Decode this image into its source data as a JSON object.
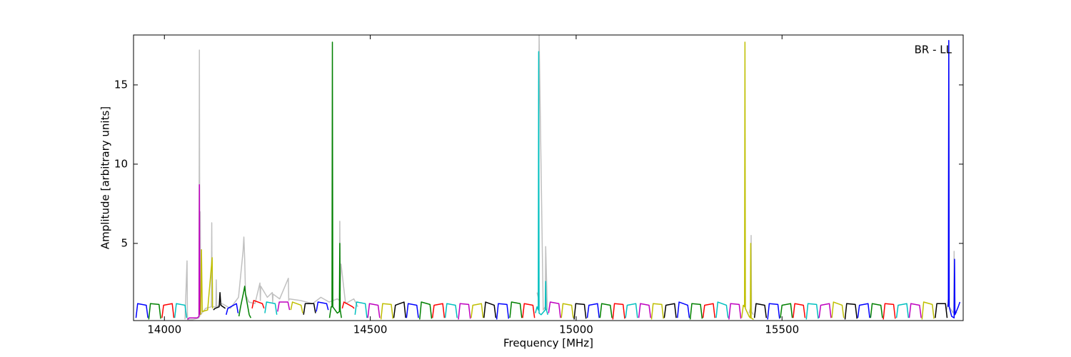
{
  "chart_data": {
    "type": "line",
    "xlabel": "Frequency [MHz]",
    "ylabel": "Amplitude [arbitrary units]",
    "annotation": "BR - LL",
    "xlim": [
      13925,
      15940
    ],
    "ylim": [
      0.13,
      18.15
    ],
    "xticks": [
      14000,
      14500,
      15000,
      15500
    ],
    "yticks": [
      5,
      10,
      15
    ],
    "series": [
      {
        "color": "#c0c0c0",
        "x": [
          14050,
          14055,
          14056,
          14070,
          14084,
          14085,
          14086,
          14087,
          14088,
          14100,
          14114,
          14115,
          14116,
          14125,
          14126,
          14127,
          14140,
          14160,
          14180,
          14191,
          14193,
          14195,
          14197,
          14205,
          14220,
          14232,
          14233,
          14234,
          14250,
          14262,
          14263,
          14264,
          14280,
          14301,
          14302,
          14303,
          14330,
          14360,
          14380,
          14400,
          14420,
          14425,
          14426,
          14427,
          14429,
          14440,
          14460,
          14470,
          14480,
          14905,
          14909,
          14910,
          14920,
          14925,
          14926,
          14930,
          14940,
          15420,
          15424,
          15425,
          15426,
          15430,
          15440,
          15900,
          15904,
          15905,
          15906,
          15916,
          15917,
          15918,
          15919,
          15925
        ],
        "values": [
          0.2,
          3.9,
          0.2,
          0.2,
          0.3,
          17.2,
          0.4,
          7.0,
          0.5,
          0.9,
          1.0,
          6.3,
          1.0,
          1.0,
          2.7,
          1.0,
          1.2,
          0.9,
          1.6,
          4.5,
          5.4,
          4.0,
          1.8,
          1.3,
          1.2,
          2.5,
          1.4,
          2.3,
          1.6,
          1.9,
          1.3,
          1.8,
          1.5,
          2.8,
          1.4,
          1.5,
          1.4,
          1.2,
          1.6,
          1.3,
          1.5,
          1.4,
          6.4,
          2.0,
          3.7,
          1.2,
          1.5,
          1.0,
          null,
          1.9,
          1.5,
          18.2,
          0.8,
          1.0,
          4.8,
          0.8,
          null,
          0.6,
          1.0,
          5.5,
          0.7,
          0.5,
          null,
          0.8,
          1.5,
          17.8,
          1.0,
          0.6,
          0.9,
          4.5,
          0.8,
          0.6
        ]
      },
      {
        "color": "#0000ff",
        "x": [
          13931,
          13935,
          13956,
          13960
        ],
        "values": [
          0.3,
          1.2,
          1.1,
          0.3
        ]
      },
      {
        "color": "#008000",
        "x": [
          13962,
          13966,
          13987,
          13991
        ],
        "values": [
          0.2,
          1.2,
          1.15,
          0.25
        ]
      },
      {
        "color": "#ff0000",
        "x": [
          13994,
          13998,
          14019,
          14023
        ],
        "values": [
          0.3,
          1.1,
          1.2,
          0.3
        ]
      },
      {
        "color": "#00bfbf",
        "x": [
          14025,
          14029,
          14050,
          14054
        ],
        "values": [
          0.3,
          1.2,
          1.1,
          0.3
        ]
      },
      {
        "color": "#bf00bf",
        "x": [
          14056,
          14060,
          14080,
          14084,
          14085,
          14086
        ],
        "values": [
          0.2,
          0.3,
          0.3,
          0.4,
          8.7,
          0.5
        ]
      },
      {
        "color": "#bfbf00",
        "x": [
          14088,
          14090,
          14092,
          14105,
          14116,
          14117
        ],
        "values": [
          0.5,
          4.6,
          0.7,
          0.8,
          4.1,
          0.9
        ]
      },
      {
        "color": "#000000",
        "x": [
          14119,
          14123,
          14133,
          14135,
          14137,
          14148
        ],
        "values": [
          0.8,
          0.9,
          1.0,
          1.9,
          1.1,
          0.9
        ]
      },
      {
        "color": "#0000ff",
        "x": [
          14150,
          14154,
          14175,
          14179
        ],
        "values": [
          0.5,
          0.9,
          1.2,
          0.6
        ]
      },
      {
        "color": "#008000",
        "x": [
          14181,
          14185,
          14193,
          14195,
          14197,
          14206,
          14210
        ],
        "values": [
          0.4,
          1.0,
          2.0,
          2.3,
          1.8,
          0.5,
          0.3
        ]
      },
      {
        "color": "#ff0000",
        "x": [
          14213,
          14217,
          14238,
          14242
        ],
        "values": [
          0.9,
          1.4,
          1.2,
          0.9
        ]
      },
      {
        "color": "#00bfbf",
        "x": [
          14244,
          14248,
          14269,
          14273
        ],
        "values": [
          0.6,
          1.3,
          1.2,
          0.5
        ]
      },
      {
        "color": "#bf00bf",
        "x": [
          14275,
          14279,
          14300,
          14304
        ],
        "values": [
          0.7,
          1.3,
          1.3,
          0.8
        ]
      },
      {
        "color": "#bfbf00",
        "x": [
          14307,
          14311,
          14332,
          14336
        ],
        "values": [
          0.8,
          1.3,
          1.1,
          0.6
        ]
      },
      {
        "color": "#000000",
        "x": [
          14338,
          14342,
          14363,
          14367
        ],
        "values": [
          0.5,
          1.2,
          1.2,
          0.6
        ]
      },
      {
        "color": "#0000ff",
        "x": [
          14369,
          14373,
          14394,
          14398
        ],
        "values": [
          0.7,
          1.3,
          1.2,
          0.8
        ]
      },
      {
        "color": "#008000",
        "x": [
          14401,
          14405,
          14407,
          14408,
          14409,
          14420,
          14425,
          14426,
          14427,
          14430
        ],
        "values": [
          0.3,
          1.0,
          1.0,
          17.7,
          1.0,
          0.6,
          0.7,
          5.0,
          0.8,
          0.3
        ]
      },
      {
        "color": "#ff0000",
        "x": [
          14432,
          14436,
          14457,
          14461
        ],
        "values": [
          0.9,
          1.3,
          1.0,
          0.9
        ]
      },
      {
        "color": "#00bfbf",
        "x": [
          14463,
          14467,
          14488,
          14492
        ],
        "values": [
          0.5,
          1.3,
          1.2,
          0.3
        ]
      },
      {
        "color": "#bf00bf",
        "x": [
          14494,
          14498,
          14519,
          14523
        ],
        "values": [
          0.3,
          1.2,
          1.1,
          0.3
        ]
      },
      {
        "color": "#bfbf00",
        "x": [
          14526,
          14530,
          14551,
          14555
        ],
        "values": [
          0.2,
          1.2,
          1.15,
          0.25
        ]
      },
      {
        "color": "#000000",
        "x": [
          14557,
          14561,
          14582,
          14586
        ],
        "values": [
          0.3,
          1.1,
          1.3,
          0.3
        ]
      },
      {
        "color": "#0000ff",
        "x": [
          14588,
          14592,
          14613,
          14617
        ],
        "values": [
          0.3,
          1.2,
          1.1,
          0.3
        ]
      },
      {
        "color": "#008000",
        "x": [
          14620,
          14624,
          14645,
          14649
        ],
        "values": [
          0.2,
          1.3,
          1.15,
          0.25
        ]
      },
      {
        "color": "#ff0000",
        "x": [
          14651,
          14655,
          14676,
          14680
        ],
        "values": [
          0.3,
          1.1,
          1.2,
          0.3
        ]
      },
      {
        "color": "#00bfbf",
        "x": [
          14682,
          14686,
          14707,
          14711
        ],
        "values": [
          0.3,
          1.2,
          1.1,
          0.3
        ]
      },
      {
        "color": "#bf00bf",
        "x": [
          14714,
          14718,
          14739,
          14743
        ],
        "values": [
          0.2,
          1.2,
          1.15,
          0.25
        ]
      },
      {
        "color": "#bfbf00",
        "x": [
          14745,
          14749,
          14770,
          14774
        ],
        "values": [
          0.3,
          1.1,
          1.2,
          0.3
        ]
      },
      {
        "color": "#000000",
        "x": [
          14776,
          14780,
          14801,
          14805
        ],
        "values": [
          0.3,
          1.3,
          1.1,
          0.3
        ]
      },
      {
        "color": "#0000ff",
        "x": [
          14807,
          14811,
          14832,
          14836
        ],
        "values": [
          0.2,
          1.2,
          1.15,
          0.25
        ]
      },
      {
        "color": "#008000",
        "x": [
          14839,
          14843,
          14864,
          14868
        ],
        "values": [
          0.3,
          1.3,
          1.2,
          0.3
        ]
      },
      {
        "color": "#ff0000",
        "x": [
          14870,
          14874,
          14895,
          14899
        ],
        "values": [
          0.3,
          1.2,
          1.1,
          0.3
        ]
      },
      {
        "color": "#00bfbf",
        "x": [
          14901,
          14905,
          14908,
          14909,
          14910,
          14915,
          14925,
          14926,
          14927,
          14931
        ],
        "values": [
          0.6,
          1.0,
          0.8,
          17.1,
          0.6,
          0.5,
          0.8,
          2.6,
          0.9,
          0.5
        ]
      },
      {
        "color": "#bf00bf",
        "x": [
          14933,
          14937,
          14958,
          14962
        ],
        "values": [
          0.6,
          1.3,
          1.2,
          0.3
        ]
      },
      {
        "color": "#bfbf00",
        "x": [
          14964,
          14968,
          14989,
          14993
        ],
        "values": [
          0.3,
          1.2,
          1.1,
          0.3
        ]
      },
      {
        "color": "#000000",
        "x": [
          14995,
          14999,
          15020,
          15024
        ],
        "values": [
          0.2,
          1.2,
          1.15,
          0.25
        ]
      },
      {
        "color": "#0000ff",
        "x": [
          15027,
          15031,
          15052,
          15056
        ],
        "values": [
          0.3,
          1.1,
          1.2,
          0.3
        ]
      },
      {
        "color": "#008000",
        "x": [
          15058,
          15062,
          15083,
          15087
        ],
        "values": [
          0.3,
          1.2,
          1.1,
          0.3
        ]
      },
      {
        "color": "#ff0000",
        "x": [
          15089,
          15093,
          15114,
          15118
        ],
        "values": [
          0.2,
          1.2,
          1.15,
          0.25
        ]
      },
      {
        "color": "#00bfbf",
        "x": [
          15120,
          15124,
          15145,
          15149
        ],
        "values": [
          0.3,
          1.1,
          1.2,
          0.3
        ]
      },
      {
        "color": "#bf00bf",
        "x": [
          15152,
          15156,
          15177,
          15181
        ],
        "values": [
          0.3,
          1.2,
          1.1,
          0.3
        ]
      },
      {
        "color": "#bfbf00",
        "x": [
          15183,
          15187,
          15208,
          15212
        ],
        "values": [
          0.2,
          1.2,
          1.15,
          0.25
        ]
      },
      {
        "color": "#000000",
        "x": [
          15214,
          15218,
          15239,
          15243
        ],
        "values": [
          0.3,
          1.1,
          1.2,
          0.3
        ]
      },
      {
        "color": "#0000ff",
        "x": [
          15246,
          15250,
          15271,
          15275
        ],
        "values": [
          0.3,
          1.3,
          1.1,
          0.3
        ]
      },
      {
        "color": "#008000",
        "x": [
          15277,
          15281,
          15302,
          15306
        ],
        "values": [
          0.2,
          1.2,
          1.15,
          0.25
        ]
      },
      {
        "color": "#ff0000",
        "x": [
          15308,
          15312,
          15333,
          15337
        ],
        "values": [
          0.3,
          1.1,
          1.2,
          0.3
        ]
      },
      {
        "color": "#00bfbf",
        "x": [
          15340,
          15344,
          15365,
          15369
        ],
        "values": [
          0.3,
          1.3,
          1.1,
          0.3
        ]
      },
      {
        "color": "#bf00bf",
        "x": [
          15371,
          15375,
          15396,
          15400
        ],
        "values": [
          0.2,
          1.2,
          1.15,
          0.25
        ]
      },
      {
        "color": "#bfbf00",
        "x": [
          15402,
          15406,
          15409,
          15410,
          15411,
          15420,
          15423,
          15424,
          15425,
          15431
        ],
        "values": [
          0.3,
          1.1,
          1.0,
          17.7,
          0.9,
          0.4,
          0.3,
          5.0,
          0.3,
          0.2
        ]
      },
      {
        "color": "#000000",
        "x": [
          15433,
          15437,
          15458,
          15462
        ],
        "values": [
          0.3,
          1.2,
          1.1,
          0.3
        ]
      },
      {
        "color": "#0000ff",
        "x": [
          15465,
          15469,
          15490,
          15494
        ],
        "values": [
          0.2,
          1.2,
          1.15,
          0.25
        ]
      },
      {
        "color": "#008000",
        "x": [
          15496,
          15500,
          15521,
          15525
        ],
        "values": [
          0.3,
          1.1,
          1.2,
          0.3
        ]
      },
      {
        "color": "#ff0000",
        "x": [
          15527,
          15531,
          15552,
          15556
        ],
        "values": [
          0.3,
          1.2,
          1.1,
          0.3
        ]
      },
      {
        "color": "#00bfbf",
        "x": [
          15559,
          15563,
          15584,
          15588
        ],
        "values": [
          0.2,
          1.2,
          1.15,
          0.25
        ]
      },
      {
        "color": "#bf00bf",
        "x": [
          15590,
          15594,
          15615,
          15619
        ],
        "values": [
          0.3,
          1.1,
          1.2,
          0.3
        ]
      },
      {
        "color": "#bfbf00",
        "x": [
          15621,
          15625,
          15646,
          15650
        ],
        "values": [
          0.3,
          1.3,
          1.1,
          0.3
        ]
      },
      {
        "color": "#000000",
        "x": [
          15653,
          15657,
          15678,
          15682
        ],
        "values": [
          0.2,
          1.2,
          1.15,
          0.25
        ]
      },
      {
        "color": "#0000ff",
        "x": [
          15684,
          15688,
          15709,
          15713
        ],
        "values": [
          0.3,
          1.1,
          1.2,
          0.3
        ]
      },
      {
        "color": "#008000",
        "x": [
          15715,
          15719,
          15740,
          15744
        ],
        "values": [
          0.3,
          1.2,
          1.1,
          0.3
        ]
      },
      {
        "color": "#ff0000",
        "x": [
          15746,
          15750,
          15771,
          15775
        ],
        "values": [
          0.2,
          1.2,
          1.15,
          0.25
        ]
      },
      {
        "color": "#00bfbf",
        "x": [
          15778,
          15782,
          15803,
          15807
        ],
        "values": [
          0.3,
          1.1,
          1.2,
          0.3
        ]
      },
      {
        "color": "#bf00bf",
        "x": [
          15809,
          15813,
          15834,
          15838
        ],
        "values": [
          0.3,
          1.2,
          1.1,
          0.3
        ]
      },
      {
        "color": "#bfbf00",
        "x": [
          15840,
          15844,
          15865,
          15869
        ],
        "values": [
          0.2,
          1.3,
          1.15,
          0.25
        ]
      },
      {
        "color": "#000000",
        "x": [
          15872,
          15876,
          15897,
          15901
        ],
        "values": [
          0.3,
          1.2,
          1.2,
          0.3
        ]
      },
      {
        "color": "#0000ff",
        "x": [
          15903,
          15904,
          15905,
          15906,
          15912,
          15918,
          15919,
          15920,
          15928,
          15932
        ],
        "values": [
          1.0,
          1.2,
          17.8,
          1.0,
          0.4,
          0.3,
          4.0,
          0.5,
          1.0,
          1.3
        ]
      }
    ]
  }
}
